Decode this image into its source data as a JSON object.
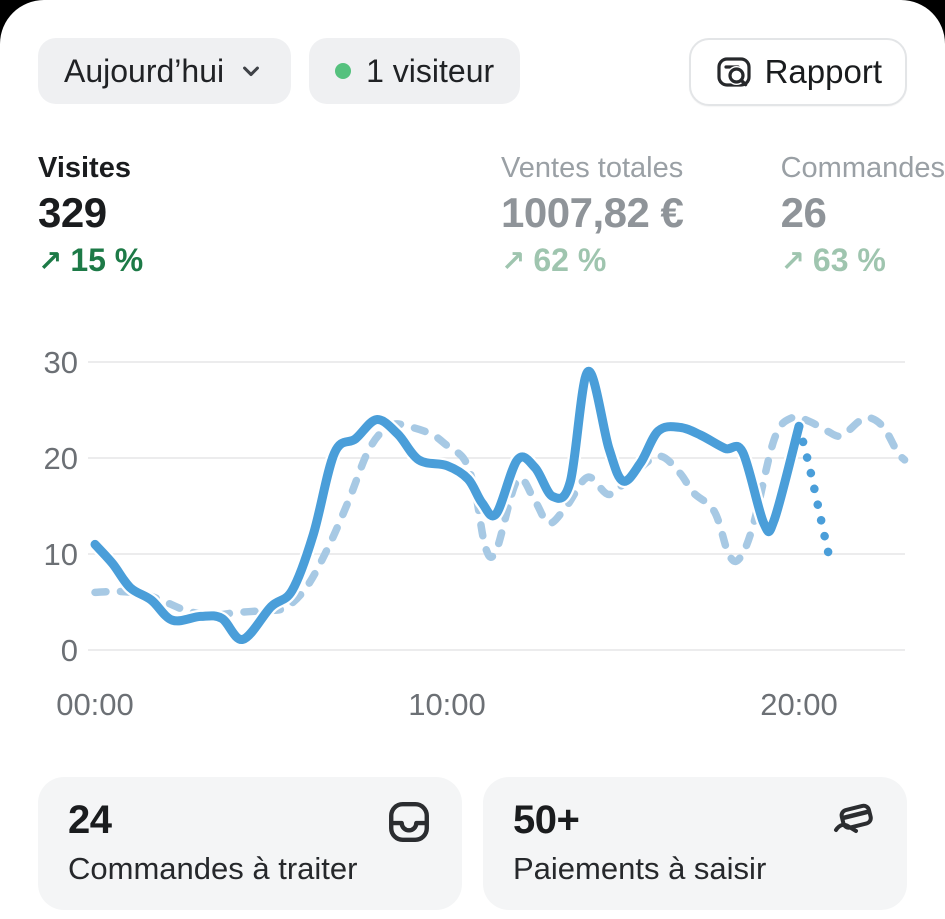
{
  "header": {
    "date_filter": {
      "label": "Aujourd’hui"
    },
    "visitors": {
      "label": "1 visiteur",
      "dot_color": "#55c17e"
    },
    "report_button": {
      "label": "Rapport"
    }
  },
  "stats": [
    {
      "label": "Visites",
      "value": "329",
      "delta": "15 %",
      "active": true
    },
    {
      "label": "Ventes totales",
      "value": "1007,82 €",
      "delta": "62 %",
      "active": false
    },
    {
      "label": "Commandes",
      "value": "26",
      "delta": "63 %",
      "active": false
    }
  ],
  "icons": {
    "trend_up": "↗",
    "orders_card_icon": "orders-tray-icon",
    "payments_card_icon": "card-in-hand-icon"
  },
  "chart_data": {
    "type": "line",
    "title": "",
    "xlabel": "",
    "ylabel": "",
    "ylim": [
      0,
      30
    ],
    "y_ticks": [
      0,
      10,
      20,
      30
    ],
    "x_ticks": [
      {
        "hour": 0,
        "label": "00:00"
      },
      {
        "hour": 10,
        "label": "10:00"
      },
      {
        "hour": 20,
        "label": "20:00"
      }
    ],
    "grid": true,
    "legend": "none",
    "colors": {
      "today": "#4a9ed9",
      "comparison": "#a7c9e4",
      "grid": "#e5e6e7",
      "fill_top": "rgba(93,152,207,0.12)"
    },
    "series": [
      {
        "name": "today",
        "style": "solid",
        "color": "#4a9ed9",
        "fill_under": true,
        "points": [
          [
            0,
            11
          ],
          [
            0.5,
            9
          ],
          [
            1,
            6.5
          ],
          [
            1.6,
            5.2
          ],
          [
            2.2,
            3.1
          ],
          [
            3,
            3.5
          ],
          [
            3.6,
            3.3
          ],
          [
            4.2,
            1.1
          ],
          [
            5,
            4.5
          ],
          [
            5.6,
            6.2
          ],
          [
            6.2,
            12
          ],
          [
            6.8,
            20.5
          ],
          [
            7.4,
            22
          ],
          [
            8,
            24
          ],
          [
            8.6,
            22.5
          ],
          [
            9.2,
            19.8
          ],
          [
            10,
            19.2
          ],
          [
            10.6,
            17.8
          ],
          [
            11,
            15.3
          ],
          [
            11.4,
            14.2
          ],
          [
            12,
            19.8
          ],
          [
            12.5,
            19
          ],
          [
            13,
            16
          ],
          [
            13.5,
            17.5
          ],
          [
            14,
            29
          ],
          [
            14.6,
            21
          ],
          [
            15,
            17.6
          ],
          [
            15.5,
            19.5
          ],
          [
            16,
            22.8
          ],
          [
            16.6,
            23.2
          ],
          [
            17.2,
            22.4
          ],
          [
            17.9,
            21
          ],
          [
            18.4,
            20.6
          ],
          [
            19,
            13.2
          ],
          [
            19.3,
            13.6
          ],
          [
            20,
            23.3
          ]
        ]
      },
      {
        "name": "today_projection",
        "style": "dotted",
        "color": "#4a9ed9",
        "fill_under": true,
        "points": [
          [
            20,
            23.3
          ],
          [
            20.3,
            19
          ],
          [
            20.6,
            14
          ],
          [
            20.9,
            9
          ]
        ]
      },
      {
        "name": "comparison_period",
        "style": "dashed",
        "color": "#a7c9e4",
        "fill_under": false,
        "points": [
          [
            0,
            6
          ],
          [
            0.7,
            6.1
          ],
          [
            1.4,
            5.8
          ],
          [
            2,
            5
          ],
          [
            2.6,
            4.1
          ],
          [
            3.3,
            3.6
          ],
          [
            4,
            3.9
          ],
          [
            4.8,
            4.1
          ],
          [
            5.4,
            4.4
          ],
          [
            6,
            6.5
          ],
          [
            6.6,
            10.5
          ],
          [
            7.2,
            15.5
          ],
          [
            7.8,
            21
          ],
          [
            8.4,
            23.4
          ],
          [
            9,
            23.2
          ],
          [
            9.6,
            22.4
          ],
          [
            10,
            21.3
          ],
          [
            10.5,
            19.8
          ],
          [
            10.8,
            16.5
          ],
          [
            11.1,
            10.6
          ],
          [
            11.4,
            10.4
          ],
          [
            12,
            17.7
          ],
          [
            12.5,
            15.5
          ],
          [
            12.9,
            13.2
          ],
          [
            13.4,
            15
          ],
          [
            14,
            18
          ],
          [
            14.6,
            16.2
          ],
          [
            15.2,
            18
          ],
          [
            16,
            20.2
          ],
          [
            16.6,
            18.5
          ],
          [
            17,
            16.4
          ],
          [
            17.6,
            14.4
          ],
          [
            18,
            10
          ],
          [
            18.3,
            9.5
          ],
          [
            18.7,
            13
          ],
          [
            19.3,
            22
          ],
          [
            19.8,
            24.2
          ],
          [
            20.3,
            23.8
          ],
          [
            20.8,
            22.8
          ],
          [
            21.2,
            22.3
          ],
          [
            21.7,
            23.8
          ],
          [
            22,
            24.2
          ],
          [
            22.4,
            23.2
          ],
          [
            22.8,
            20.6
          ],
          [
            23,
            19.8
          ]
        ]
      }
    ]
  },
  "cards": [
    {
      "value": "24",
      "label": "Commandes à traiter",
      "icon": "orders-tray-icon"
    },
    {
      "value": "50+",
      "label": "Paiements à saisir",
      "icon": "card-in-hand-icon"
    }
  ]
}
